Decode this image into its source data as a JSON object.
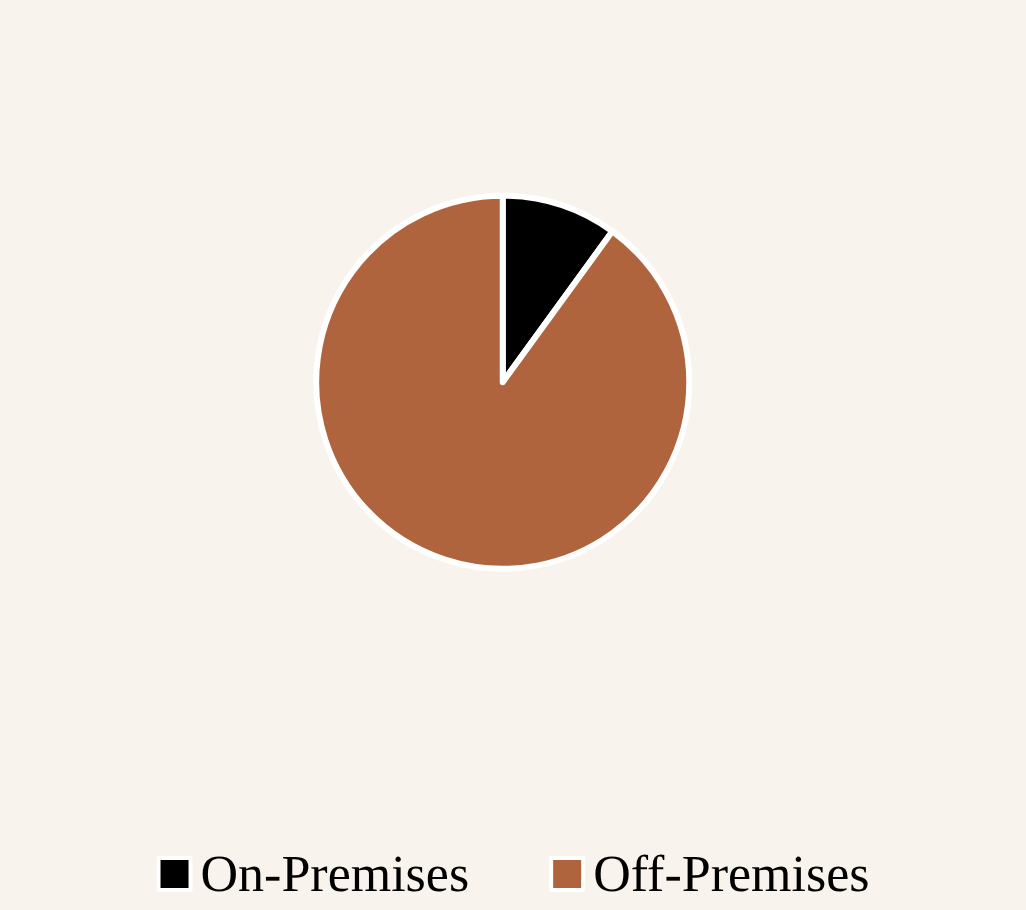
{
  "chart_data": {
    "type": "pie",
    "categories": [
      "On-Premises",
      "Off-Premises"
    ],
    "values": [
      10,
      90
    ],
    "colors": [
      "#000000",
      "#b0643d"
    ],
    "legend": "bottom"
  }
}
